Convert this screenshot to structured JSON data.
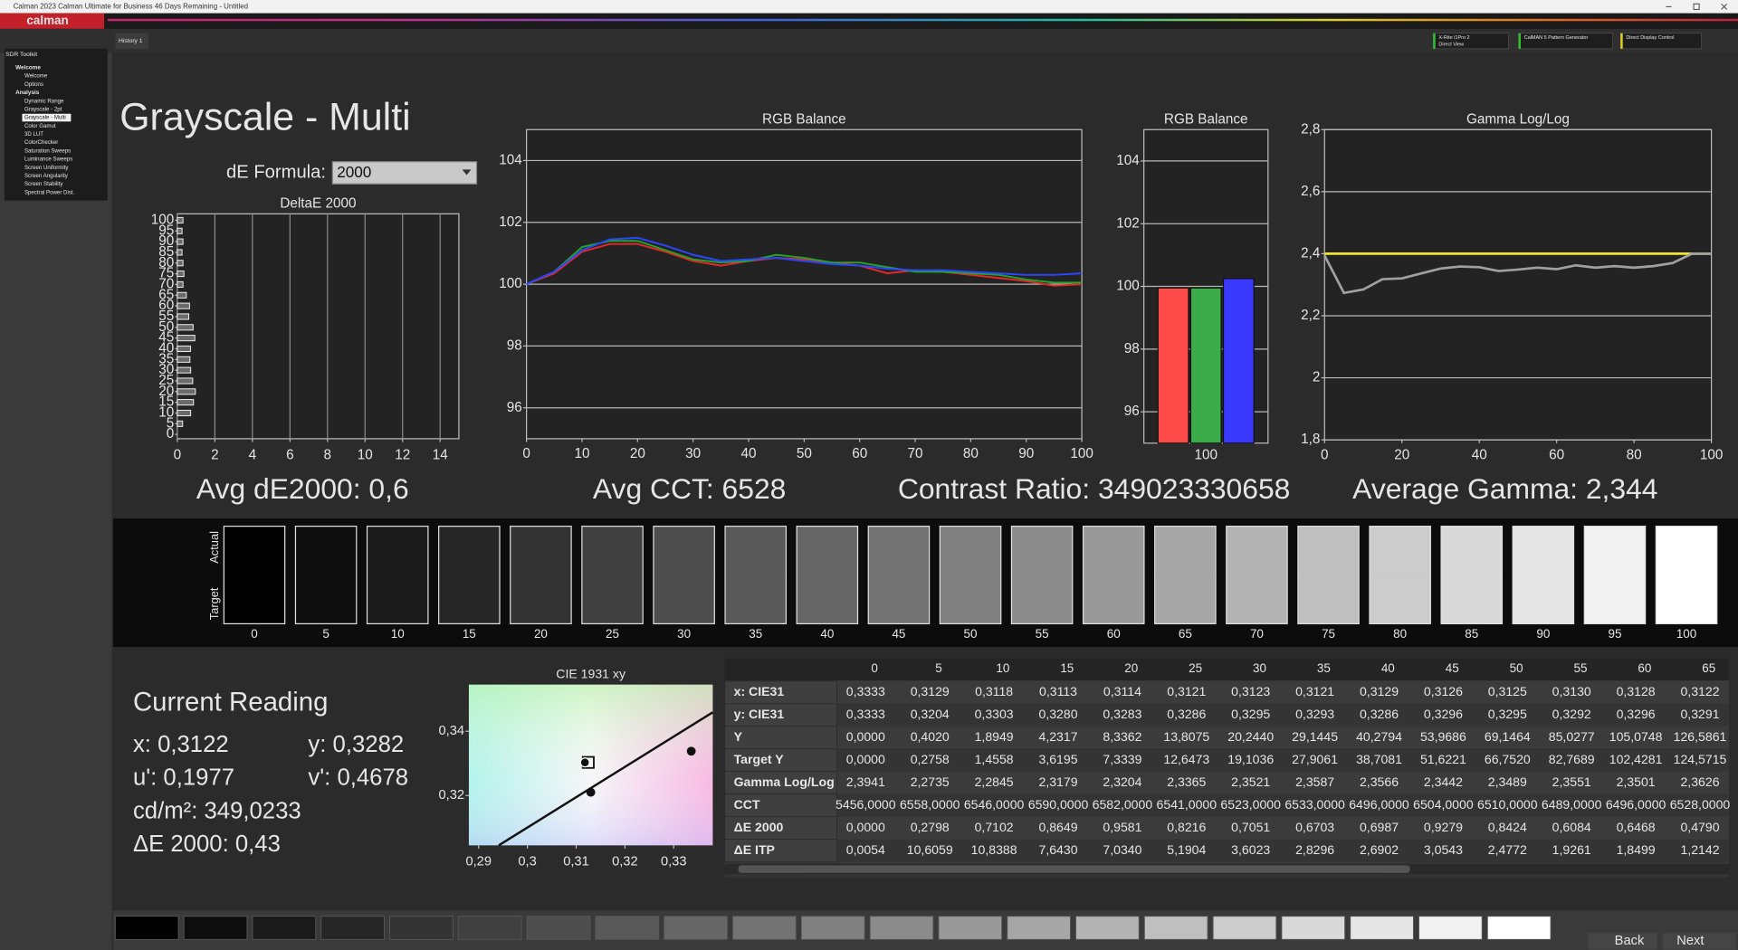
{
  "window": {
    "title": "Calman 2023 Calman Ultimate for Business 46 Days Remaining  - Untitled"
  },
  "app": {
    "logo": "calman",
    "tab": "History 1",
    "devices": [
      {
        "name": "X-Rite i1Pro 2",
        "mode": "Direct View"
      },
      {
        "name": "CalMAN 5 Pattern Generator"
      },
      {
        "name": "Direct Display Control"
      }
    ]
  },
  "sidebar": {
    "title": "SDR Toolkit",
    "sections": [
      {
        "name": "Welcome",
        "items": [
          "Welcome",
          "Options"
        ]
      },
      {
        "name": "Analysis",
        "items": [
          "Dynamic Range",
          "Grayscale - 2pt",
          "Grayscale - Multi",
          "Color Gamut",
          "3D LUT",
          "ColorChecker",
          "Saturation Sweeps",
          "Luminance Sweeps",
          "Screen Uniformity",
          "Screen Angularity",
          "Screen Stability",
          "Spectral Power Dist."
        ]
      }
    ]
  },
  "page_title": "Grayscale - Multi",
  "de_formula": {
    "label": "dE Formula:",
    "value": "2000"
  },
  "deltae_chart": {
    "type": "barh",
    "title": "DeltaE 2000",
    "color": "#6a6a6a",
    "categories": [
      0,
      5,
      10,
      15,
      20,
      25,
      30,
      35,
      40,
      45,
      50,
      55,
      60,
      65,
      70,
      75,
      80,
      85,
      90,
      95,
      100
    ],
    "values": [
      0,
      0.28,
      0.71,
      0.86,
      0.96,
      0.82,
      0.71,
      0.67,
      0.7,
      0.93,
      0.84,
      0.61,
      0.65,
      0.48,
      0.3,
      0.35,
      0.3,
      0.25,
      0.3,
      0.25,
      0.3
    ],
    "xlim": [
      0,
      15
    ],
    "xticks": [
      0,
      2,
      4,
      6,
      8,
      10,
      12,
      14
    ],
    "ylim": [
      -2,
      103
    ],
    "yticks": [
      0,
      5,
      10,
      15,
      20,
      25,
      30,
      35,
      40,
      45,
      50,
      55,
      60,
      65,
      70,
      75,
      80,
      85,
      90,
      95,
      100
    ],
    "grid": true
  },
  "rgb_line_chart": {
    "type": "line",
    "title": "RGB Balance",
    "x": [
      0,
      5,
      10,
      15,
      20,
      25,
      30,
      35,
      40,
      45,
      50,
      55,
      60,
      65,
      70,
      75,
      80,
      85,
      90,
      95,
      100
    ],
    "series": [
      {
        "color": "#e82828",
        "values": [
          100,
          100.35,
          101.05,
          101.3,
          101.3,
          101.05,
          100.75,
          100.6,
          100.75,
          100.85,
          100.8,
          100.7,
          100.6,
          100.35,
          100.45,
          100.4,
          100.3,
          100.2,
          100.1,
          99.95,
          100.0
        ]
      },
      {
        "color": "#22a52a",
        "values": [
          100,
          100.4,
          101.2,
          101.4,
          101.4,
          101.1,
          100.8,
          100.7,
          100.75,
          100.95,
          100.85,
          100.7,
          100.7,
          100.55,
          100.4,
          100.4,
          100.35,
          100.3,
          100.15,
          100.05,
          100.05
        ]
      },
      {
        "color": "#2a46ff",
        "values": [
          100,
          100.4,
          101.1,
          101.45,
          101.5,
          101.25,
          100.95,
          100.75,
          100.8,
          100.85,
          100.75,
          100.65,
          100.6,
          100.5,
          100.45,
          100.45,
          100.4,
          100.35,
          100.3,
          100.3,
          100.35
        ]
      }
    ],
    "xlim": [
      0,
      100
    ],
    "xticks": [
      0,
      10,
      20,
      30,
      40,
      50,
      60,
      70,
      80,
      90,
      100
    ],
    "ylim": [
      95,
      105
    ],
    "yticks": [
      96,
      98,
      100,
      102,
      104
    ],
    "grid": true
  },
  "rgb_bar_chart": {
    "type": "bar",
    "title": "RGB Balance",
    "categories": [
      "100"
    ],
    "series": [
      {
        "color": "#ff4a4a",
        "values": [
          99.95
        ]
      },
      {
        "color": "#3cab4a",
        "values": [
          99.95
        ]
      },
      {
        "color": "#3a3aff",
        "values": [
          100.25
        ]
      }
    ],
    "ylim": [
      95,
      105
    ],
    "yticks": [
      96,
      98,
      100,
      102,
      104
    ],
    "grid": true
  },
  "gamma_chart": {
    "type": "line",
    "title": "Gamma Log/Log",
    "x": [
      0,
      5,
      10,
      15,
      20,
      25,
      30,
      35,
      40,
      45,
      50,
      55,
      60,
      65,
      70,
      75,
      80,
      85,
      90,
      95,
      100
    ],
    "series": [
      {
        "color": "#f0e628",
        "values": [
          2.4,
          2.4,
          2.4,
          2.4,
          2.4,
          2.4,
          2.4,
          2.4,
          2.4,
          2.4,
          2.4,
          2.4,
          2.4,
          2.4,
          2.4,
          2.4,
          2.4,
          2.4,
          2.4,
          2.4,
          2.4
        ]
      },
      {
        "color": "#a0a0a0",
        "values": [
          2.3941,
          2.2735,
          2.2845,
          2.3179,
          2.3204,
          2.3365,
          2.3521,
          2.3587,
          2.3566,
          2.3442,
          2.3489,
          2.3551,
          2.3501,
          2.3626,
          2.355,
          2.36,
          2.355,
          2.36,
          2.37,
          2.4,
          2.4
        ]
      }
    ],
    "xlim": [
      0,
      100
    ],
    "xticks": [
      0,
      20,
      40,
      60,
      80,
      100
    ],
    "ylim": [
      1.8,
      2.8
    ],
    "yticks": [
      {
        "value": 1.8,
        "label": "1,8"
      },
      {
        "value": 2,
        "label": "2"
      },
      {
        "value": 2.2,
        "label": "2,2"
      },
      {
        "value": 2.4,
        "label": "2,4"
      },
      {
        "value": 2.6,
        "label": "2,6"
      },
      {
        "value": 2.8,
        "label": "2,8"
      }
    ],
    "grid": true
  },
  "summary": [
    "Avg dE2000: 0,6",
    "Avg CCT: 6528",
    "Contrast Ratio: 349023330658",
    "Average Gamma: 2,344"
  ],
  "swatches": {
    "row_labels": [
      "Actual",
      "Target"
    ],
    "levels": [
      0,
      5,
      10,
      15,
      20,
      25,
      30,
      35,
      40,
      45,
      50,
      55,
      60,
      65,
      70,
      75,
      80,
      85,
      90,
      95,
      100
    ]
  },
  "current_reading": {
    "title": "Current Reading",
    "lines": [
      [
        "x: 0,3122",
        "y: 0,3282"
      ],
      [
        "u': 0,1977",
        "v': 0,4678"
      ],
      [
        "cd/m²: 349,0233"
      ],
      [
        "ΔE 2000: 0,43"
      ]
    ]
  },
  "cie_chart": {
    "type": "scatter",
    "title": "CIE 1931 xy",
    "x": [
      0.3118,
      0.313,
      0.3336
    ],
    "values": [
      0.3303,
      0.321,
      0.3338
    ],
    "xlim": [
      0.288,
      0.338
    ],
    "xticks": [
      {
        "value": 0.29,
        "label": "0,29"
      },
      {
        "value": 0.3,
        "label": "0,3"
      },
      {
        "value": 0.31,
        "label": "0,31"
      },
      {
        "value": 0.32,
        "label": "0,32"
      },
      {
        "value": 0.33,
        "label": "0,33"
      }
    ],
    "ylim": [
      0.3045,
      0.3545
    ],
    "yticks": [
      {
        "value": 0.32,
        "label": "0,32"
      },
      {
        "value": 0.34,
        "label": "0,34"
      }
    ]
  },
  "table": {
    "columns": [
      0,
      5,
      10,
      15,
      20,
      25,
      30,
      35,
      40,
      45,
      50,
      55,
      60,
      65
    ],
    "rows": [
      {
        "label": "x: CIE31",
        "cells": [
          "0,3333",
          "0,3129",
          "0,3118",
          "0,3113",
          "0,3114",
          "0,3121",
          "0,3123",
          "0,3121",
          "0,3129",
          "0,3126",
          "0,3125",
          "0,3130",
          "0,3128",
          "0,3122"
        ]
      },
      {
        "label": "y: CIE31",
        "cells": [
          "0,3333",
          "0,3204",
          "0,3303",
          "0,3280",
          "0,3283",
          "0,3286",
          "0,3295",
          "0,3293",
          "0,3286",
          "0,3296",
          "0,3295",
          "0,3292",
          "0,3296",
          "0,3291"
        ]
      },
      {
        "label": "Y",
        "cells": [
          "0,0000",
          "0,4020",
          "1,8949",
          "4,2317",
          "8,3362",
          "13,8075",
          "20,2440",
          "29,1445",
          "40,2794",
          "53,9686",
          "69,1464",
          "85,0277",
          "105,0748",
          "126,5861"
        ]
      },
      {
        "label": "Target Y",
        "cells": [
          "0,0000",
          "0,2758",
          "1,4558",
          "3,6195",
          "7,3339",
          "12,6473",
          "19,1036",
          "27,9061",
          "38,7081",
          "51,6221",
          "66,7520",
          "82,7689",
          "102,4281",
          "124,5715"
        ]
      },
      {
        "label": "Gamma Log/Log",
        "cells": [
          "2,3941",
          "2,2735",
          "2,2845",
          "2,3179",
          "2,3204",
          "2,3365",
          "2,3521",
          "2,3587",
          "2,3566",
          "2,3442",
          "2,3489",
          "2,3551",
          "2,3501",
          "2,3626"
        ]
      },
      {
        "label": "CCT",
        "cells": [
          "5456,0000",
          "6558,0000",
          "6546,0000",
          "6590,0000",
          "6582,0000",
          "6541,0000",
          "6523,0000",
          "6533,0000",
          "6496,0000",
          "6504,0000",
          "6510,0000",
          "6489,0000",
          "6496,0000",
          "6528,0000"
        ]
      },
      {
        "label": "ΔE 2000",
        "cells": [
          "0,0000",
          "0,2798",
          "0,7102",
          "0,8649",
          "0,9581",
          "0,8216",
          "0,7051",
          "0,6703",
          "0,6987",
          "0,9279",
          "0,8424",
          "0,6084",
          "0,6468",
          "0,4790"
        ]
      },
      {
        "label": "ΔE ITP",
        "cells": [
          "0,0054",
          "10,6059",
          "10,8388",
          "7,6430",
          "7,0340",
          "5,1904",
          "3,6023",
          "2,8296",
          "2,6902",
          "3,0543",
          "2,4772",
          "1,9261",
          "1,8499",
          "1,2142"
        ]
      }
    ]
  },
  "nav": {
    "back": "Back",
    "next": "Next"
  }
}
